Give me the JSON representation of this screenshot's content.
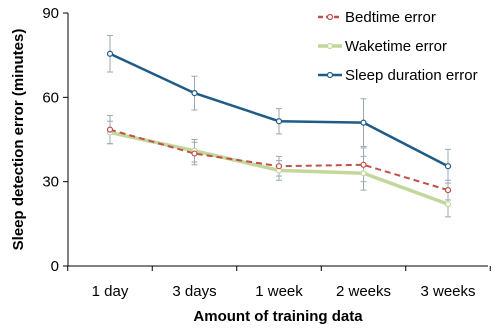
{
  "chart_data": {
    "type": "line",
    "title": "",
    "xlabel": "Amount of training data",
    "ylabel": "Sleep detection error (minutes)",
    "categories": [
      "1 day",
      "3 days",
      "1 week",
      "2 weeks",
      "3 weeks"
    ],
    "ylim": [
      0,
      90
    ],
    "yticks": [
      0,
      30,
      60,
      90
    ],
    "grid": false,
    "legend_position": "top-right",
    "series": [
      {
        "name": "Bedtime error",
        "values": [
          48.5,
          40,
          35.5,
          36,
          27
        ],
        "error": [
          5,
          4,
          3.5,
          6,
          3.5
        ],
        "color": "#c0504d",
        "line_style": "dashed",
        "marker": "open-circle"
      },
      {
        "name": "Waketime error",
        "values": [
          47.5,
          41,
          34,
          33,
          22
        ],
        "error": [
          4,
          4,
          3.5,
          6,
          4.5
        ],
        "color": "#c4d79b",
        "line_style": "solid",
        "marker": "open-circle"
      },
      {
        "name": "Sleep duration error",
        "values": [
          75.5,
          61.5,
          51.5,
          51,
          35.5
        ],
        "error": [
          6.5,
          6,
          4.5,
          8.5,
          6
        ],
        "color": "#1f5c85",
        "line_style": "solid",
        "marker": "open-circle"
      }
    ]
  }
}
